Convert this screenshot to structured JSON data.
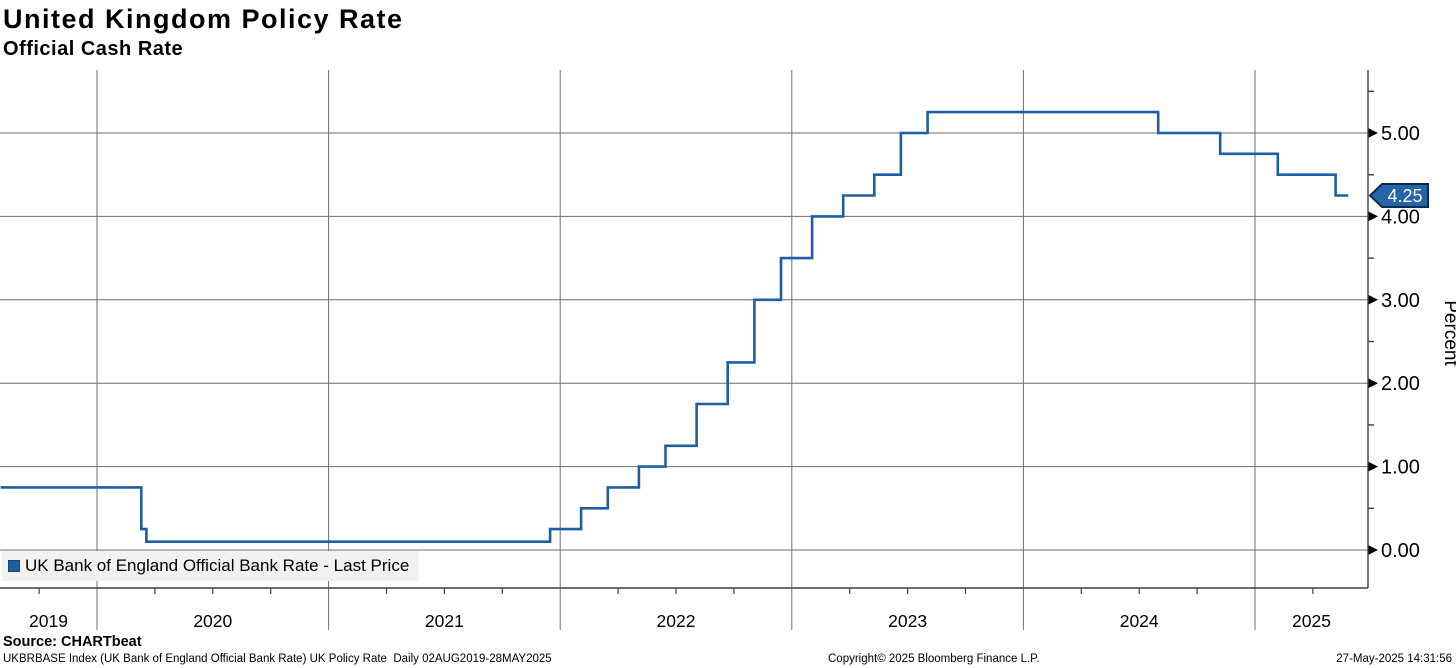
{
  "title": "United Kingdom Policy Rate",
  "subtitle": "Official Cash Rate",
  "legend": {
    "marker_color": "#1e5fa3",
    "label": "UK Bank of England Official Bank Rate - Last Price"
  },
  "last_price_badge": {
    "value": "4.25",
    "bg": "#2464a8",
    "border": "#0b2b4d",
    "text_color": "#ffffff"
  },
  "footer": {
    "source": "Source: CHARTbeat",
    "description": "UKBRBASE Index (UK Bank of England Official Bank Rate) UK Policy Rate  Daily 02AUG2019-28MAY2025",
    "copyright": "Copyright© 2025 Bloomberg Finance L.P.",
    "timestamp": "27-May-2025 14:31:56"
  },
  "colors": {
    "line": "#1e5fa3",
    "gridline": "#6f6f6f",
    "axis": "#3f3f3f",
    "legend_bg": "#f1f1ef"
  },
  "chart_data": {
    "type": "line",
    "step": true,
    "title": "United Kingdom Policy Rate",
    "subtitle": "Official Cash Rate",
    "xlabel": "",
    "ylabel": "Percent",
    "legend_position": "bottom-left",
    "grid": true,
    "x_axis": {
      "year_labels": [
        2019,
        2020,
        2021,
        2022,
        2023,
        2024,
        2025
      ],
      "gridline_years": [
        2020,
        2021,
        2022,
        2023,
        2024,
        2025
      ],
      "minor_tick_interval_years": 0.25,
      "range_t": [
        2019.5836,
        2025.49
      ]
    },
    "y_axis": {
      "label": "Percent",
      "side": "right",
      "major_ticks": [
        0,
        1,
        2,
        3,
        4,
        5
      ],
      "minor_ticks": [
        0.5,
        1.5,
        2.5,
        3.5,
        4.5,
        5.5
      ],
      "tick_decimals": 2,
      "range": [
        -0.46,
        5.76
      ]
    },
    "series": [
      {
        "name": "UK Bank of England Official Bank Rate - Last Price",
        "color": "#1e5fa3",
        "unit": "Percent",
        "last_value": 4.25,
        "end_t": 2025.4027,
        "end_date": "28MAY2025",
        "points": [
          {
            "date": "02AUG2019",
            "t": 2019.5836,
            "value": 0.75
          },
          {
            "date": "11MAR2020",
            "t": 2020.1913,
            "value": 0.25
          },
          {
            "date": "19MAR2020",
            "t": 2020.2131,
            "value": 0.1
          },
          {
            "date": "16DEC2021",
            "t": 2021.9562,
            "value": 0.25
          },
          {
            "date": "03FEB2022",
            "t": 2022.0904,
            "value": 0.5
          },
          {
            "date": "17MAR2022",
            "t": 2022.2055,
            "value": 0.75
          },
          {
            "date": "05MAY2022",
            "t": 2022.3397,
            "value": 1.0
          },
          {
            "date": "16JUN2022",
            "t": 2022.4548,
            "value": 1.25
          },
          {
            "date": "04AUG2022",
            "t": 2022.589,
            "value": 1.75
          },
          {
            "date": "22SEP2022",
            "t": 2022.7233,
            "value": 2.25
          },
          {
            "date": "03NOV2022",
            "t": 2022.8384,
            "value": 3.0
          },
          {
            "date": "15DEC2022",
            "t": 2022.9534,
            "value": 3.5
          },
          {
            "date": "02FEB2023",
            "t": 2023.0877,
            "value": 4.0
          },
          {
            "date": "23MAR2023",
            "t": 2023.2219,
            "value": 4.25
          },
          {
            "date": "11MAY2023",
            "t": 2023.3562,
            "value": 4.5
          },
          {
            "date": "22JUN2023",
            "t": 2023.4712,
            "value": 5.0
          },
          {
            "date": "03AUG2023",
            "t": 2023.5863,
            "value": 5.25
          },
          {
            "date": "01AUG2024",
            "t": 2024.582,
            "value": 5.0
          },
          {
            "date": "07NOV2024",
            "t": 2024.8497,
            "value": 4.75
          },
          {
            "date": "06FEB2025",
            "t": 2025.0986,
            "value": 4.5
          },
          {
            "date": "08MAY2025",
            "t": 2025.3479,
            "value": 4.25
          }
        ]
      }
    ]
  }
}
